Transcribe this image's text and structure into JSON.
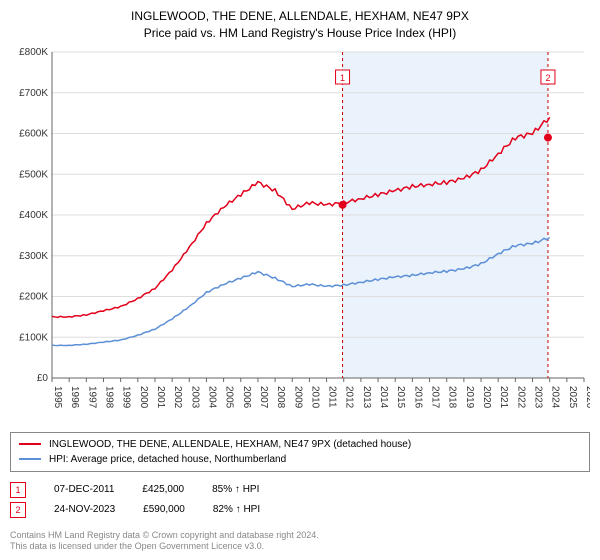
{
  "title": {
    "line1": "INGLEWOOD, THE DENE, ALLENDALE, HEXHAM, NE47 9PX",
    "line2": "Price paid vs. HM Land Registry's House Price Index (HPI)",
    "fontsize": 12,
    "color": "#333333"
  },
  "chart": {
    "type": "line",
    "background_color": "#ffffff",
    "shaded_region": {
      "x_start": 2011.9,
      "x_end": 2023.9,
      "color": "#eaf2fb"
    },
    "xlim": [
      1995,
      2026
    ],
    "ylim": [
      0,
      800000
    ],
    "x_ticks": [
      1995,
      1996,
      1997,
      1998,
      1999,
      2000,
      2001,
      2002,
      2003,
      2004,
      2005,
      2006,
      2007,
      2008,
      2009,
      2010,
      2011,
      2012,
      2013,
      2014,
      2015,
      2016,
      2017,
      2018,
      2019,
      2020,
      2021,
      2022,
      2023,
      2024,
      2025,
      2026
    ],
    "y_ticks": [
      0,
      100000,
      200000,
      300000,
      400000,
      500000,
      600000,
      700000,
      800000
    ],
    "y_tick_labels": [
      "£0",
      "£100K",
      "£200K",
      "£300K",
      "£400K",
      "£500K",
      "£600K",
      "£700K",
      "£800K"
    ],
    "grid_color": "#dddddd",
    "axis_color": "#666666",
    "series": [
      {
        "name": "INGLEWOOD, THE DENE, ALLENDALE, HEXHAM, NE47 9PX (detached house)",
        "color": "#e2001a",
        "line_width": 1.5,
        "x": [
          1995,
          1996,
          1997,
          1998,
          1999,
          2000,
          2001,
          2002,
          2003,
          2004,
          2005,
          2006,
          2007,
          2008,
          2009,
          2010,
          2011,
          2012,
          2013,
          2014,
          2015,
          2016,
          2017,
          2018,
          2019,
          2020,
          2021,
          2022,
          2023,
          2024
        ],
        "y": [
          150000,
          150000,
          155000,
          165000,
          175000,
          195000,
          220000,
          265000,
          320000,
          380000,
          420000,
          450000,
          480000,
          460000,
          415000,
          430000,
          425000,
          430000,
          440000,
          450000,
          460000,
          470000,
          475000,
          480000,
          490000,
          510000,
          550000,
          590000,
          600000,
          640000
        ]
      },
      {
        "name": "HPI: Average price, detached house, Northumberland",
        "color": "#5b8fd6",
        "line_width": 1.5,
        "x": [
          1995,
          1996,
          1997,
          1998,
          1999,
          2000,
          2001,
          2002,
          2003,
          2004,
          2005,
          2006,
          2007,
          2008,
          2009,
          2010,
          2011,
          2012,
          2013,
          2014,
          2015,
          2016,
          2017,
          2018,
          2019,
          2020,
          2021,
          2022,
          2023,
          2024
        ],
        "y": [
          80000,
          80000,
          83000,
          88000,
          93000,
          105000,
          120000,
          145000,
          175000,
          210000,
          230000,
          245000,
          260000,
          245000,
          225000,
          230000,
          225000,
          228000,
          235000,
          242000,
          248000,
          252000,
          258000,
          262000,
          268000,
          280000,
          305000,
          325000,
          330000,
          345000
        ]
      }
    ],
    "markers": [
      {
        "id": "1",
        "x": 2011.93,
        "y": 425000,
        "color": "#e2001a",
        "border": "#e2001a"
      },
      {
        "id": "2",
        "x": 2023.9,
        "y": 590000,
        "color": "#e2001a",
        "border": "#e2001a"
      }
    ],
    "marker_dash_color": "#cc0000"
  },
  "legend": {
    "border_color": "#888888",
    "items": [
      {
        "color": "#e2001a",
        "label": "INGLEWOOD, THE DENE, ALLENDALE, HEXHAM, NE47 9PX (detached house)"
      },
      {
        "color": "#5b8fd6",
        "label": "HPI: Average price, detached house, Northumberland"
      }
    ]
  },
  "marker_table": {
    "rows": [
      {
        "id": "1",
        "border_color": "#e2001a",
        "date": "07-DEC-2011",
        "price": "£425,000",
        "rel": "85% ↑ HPI"
      },
      {
        "id": "2",
        "border_color": "#e2001a",
        "date": "24-NOV-2023",
        "price": "£590,000",
        "rel": "82% ↑ HPI"
      }
    ]
  },
  "footer": {
    "line1": "Contains HM Land Registry data © Crown copyright and database right 2024.",
    "line2": "This data is licensed under the Open Government Licence v3.0.",
    "color": "#888888"
  }
}
